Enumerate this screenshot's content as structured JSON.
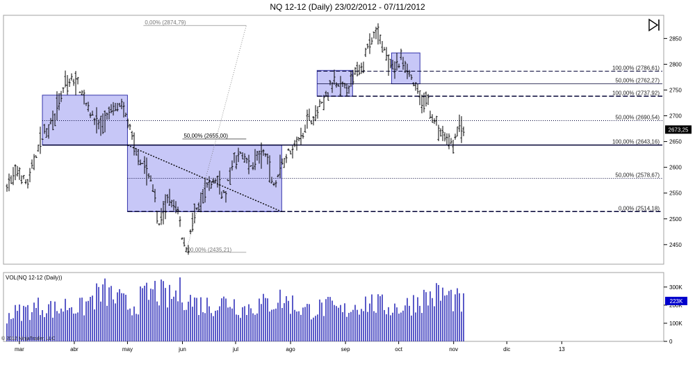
{
  "title": "NQ 12-12 (Daily)  23/02/2012 - 07/11/2012",
  "copyright": "© 2012 NinjaTrader, LLC",
  "chart_data": [
    {
      "type": "candlestick",
      "title": "NQ 12-12 (Daily)  23/02/2012 - 07/11/2012",
      "price_axis": {
        "ylim": [
          2412,
          2895
        ],
        "ticks": [
          2450,
          2500,
          2550,
          2600,
          2650,
          2700,
          2750,
          2800,
          2850
        ]
      },
      "x_tick_labels": [
        "mar",
        "abr",
        "may",
        "jun",
        "jul",
        "ago",
        "sep",
        "oct",
        "nov",
        "dic",
        "13"
      ],
      "x_tick_dates": [
        "2012-03-01",
        "2012-04-01",
        "2012-05-01",
        "2012-06-01",
        "2012-07-01",
        "2012-08-01",
        "2012-09-01",
        "2012-10-01",
        "2012-11-01",
        "2012-12-01",
        "2013-01-01"
      ],
      "last_price": "2673,25",
      "price_path": [
        [
          "2012-02-23",
          2565
        ],
        [
          "2012-02-29",
          2590
        ],
        [
          "2012-03-06",
          2565
        ],
        [
          "2012-03-09",
          2610
        ],
        [
          "2012-03-14",
          2660
        ],
        [
          "2012-03-19",
          2690
        ],
        [
          "2012-03-23",
          2720
        ],
        [
          "2012-03-27",
          2760
        ],
        [
          "2012-04-02",
          2770
        ],
        [
          "2012-04-05",
          2745
        ],
        [
          "2012-04-11",
          2700
        ],
        [
          "2012-04-16",
          2680
        ],
        [
          "2012-04-20",
          2700
        ],
        [
          "2012-04-25",
          2720
        ],
        [
          "2012-04-30",
          2705
        ],
        [
          "2012-05-04",
          2650
        ],
        [
          "2012-05-08",
          2615
        ],
        [
          "2012-05-11",
          2600
        ],
        [
          "2012-05-16",
          2560
        ],
        [
          "2012-05-18",
          2480
        ],
        [
          "2012-05-22",
          2520
        ],
        [
          "2012-05-25",
          2540
        ],
        [
          "2012-05-30",
          2510
        ],
        [
          "2012-06-01",
          2455
        ],
        [
          "2012-06-04",
          2440
        ],
        [
          "2012-06-06",
          2490
        ],
        [
          "2012-06-11",
          2530
        ],
        [
          "2012-06-15",
          2560
        ],
        [
          "2012-06-20",
          2580
        ],
        [
          "2012-06-25",
          2545
        ],
        [
          "2012-06-29",
          2600
        ],
        [
          "2012-07-03",
          2630
        ],
        [
          "2012-07-09",
          2600
        ],
        [
          "2012-07-13",
          2620
        ],
        [
          "2012-07-18",
          2625
        ],
        [
          "2012-07-23",
          2560
        ],
        [
          "2012-07-26",
          2600
        ],
        [
          "2012-07-31",
          2630
        ],
        [
          "2012-08-06",
          2655
        ],
        [
          "2012-08-10",
          2690
        ],
        [
          "2012-08-15",
          2700
        ],
        [
          "2012-08-20",
          2730
        ],
        [
          "2012-08-24",
          2760
        ],
        [
          "2012-08-29",
          2755
        ],
        [
          "2012-09-04",
          2760
        ],
        [
          "2012-09-07",
          2790
        ],
        [
          "2012-09-12",
          2810
        ],
        [
          "2012-09-14",
          2840
        ],
        [
          "2012-09-19",
          2860
        ],
        [
          "2012-09-21",
          2850
        ],
        [
          "2012-09-25",
          2800
        ],
        [
          "2012-09-28",
          2790
        ],
        [
          "2012-10-03",
          2810
        ],
        [
          "2012-10-05",
          2800
        ],
        [
          "2012-10-10",
          2760
        ],
        [
          "2012-10-15",
          2720
        ],
        [
          "2012-10-18",
          2740
        ],
        [
          "2012-10-19",
          2700
        ],
        [
          "2012-10-23",
          2680
        ],
        [
          "2012-10-26",
          2660
        ],
        [
          "2012-10-31",
          2645
        ],
        [
          "2012-11-02",
          2660
        ],
        [
          "2012-11-05",
          2680
        ],
        [
          "2012-11-07",
          2673
        ]
      ],
      "rectangles": [
        {
          "from": "2012-03-14",
          "to": "2012-05-01",
          "top": 2740,
          "bottom": 2643
        },
        {
          "from": "2012-05-01",
          "to": "2012-07-27",
          "top": 2643,
          "bottom": 2514
        },
        {
          "from": "2012-08-16",
          "to": "2012-09-05",
          "top": 2788,
          "bottom": 2738
        },
        {
          "from": "2012-09-27",
          "to": "2012-10-13",
          "top": 2822,
          "bottom": 2762
        }
      ],
      "fibonacci_levels": [
        {
          "label": "100,00% (2786,61)",
          "price": 2786.61,
          "style": "dashed"
        },
        {
          "label": "50,00% (2762,27)",
          "price": 2762.27,
          "style": "solid"
        },
        {
          "label": "100,00% (2737,92)",
          "price": 2737.92,
          "style": "dashed-bold"
        },
        {
          "label": "50,00% (2690,54)",
          "price": 2690.54,
          "style": "dotted"
        },
        {
          "label": "100,00% (2643,16)",
          "price": 2643.16,
          "style": "solid-bold"
        },
        {
          "label": "50,00% (2578,67)",
          "price": 2578.67,
          "style": "dotted"
        },
        {
          "label": "0,00% (2514,18)",
          "price": 2514.18,
          "style": "dashed-bold"
        }
      ],
      "fib_annotations": [
        {
          "label": "0,00% (2874,79)"
        },
        {
          "label": "00,00% (2435,21)"
        },
        {
          "label": "50,00% (2655,00)"
        }
      ]
    },
    {
      "type": "bar",
      "title": "VOL(NQ 12-12 (Daily))",
      "ylim": [
        0,
        380000
      ],
      "y_tick_labels": [
        "0",
        "100K",
        "200K",
        "300K"
      ],
      "y_ticks": [
        0,
        100000,
        200000,
        300000
      ],
      "last_value": "223K",
      "volume_profile": [
        [
          "2012-02-23",
          160000
        ],
        [
          "2012-03-01",
          180000
        ],
        [
          "2012-03-08",
          200000
        ],
        [
          "2012-03-15",
          220000
        ],
        [
          "2012-03-22",
          190000
        ],
        [
          "2012-03-29",
          230000
        ],
        [
          "2012-04-05",
          200000
        ],
        [
          "2012-04-12",
          270000
        ],
        [
          "2012-04-19",
          300000
        ],
        [
          "2012-04-26",
          250000
        ],
        [
          "2012-05-03",
          210000
        ],
        [
          "2012-05-10",
          270000
        ],
        [
          "2012-05-17",
          310000
        ],
        [
          "2012-05-24",
          260000
        ],
        [
          "2012-05-31",
          300000
        ],
        [
          "2012-06-07",
          240000
        ],
        [
          "2012-06-14",
          220000
        ],
        [
          "2012-06-21",
          230000
        ],
        [
          "2012-06-28",
          250000
        ],
        [
          "2012-07-05",
          200000
        ],
        [
          "2012-07-12",
          220000
        ],
        [
          "2012-07-19",
          230000
        ],
        [
          "2012-07-26",
          260000
        ],
        [
          "2012-08-02",
          230000
        ],
        [
          "2012-08-09",
          190000
        ],
        [
          "2012-08-16",
          200000
        ],
        [
          "2012-08-23",
          210000
        ],
        [
          "2012-08-30",
          180000
        ],
        [
          "2012-09-06",
          220000
        ],
        [
          "2012-09-13",
          240000
        ],
        [
          "2012-09-20",
          220000
        ],
        [
          "2012-09-27",
          210000
        ],
        [
          "2012-10-04",
          210000
        ],
        [
          "2012-10-11",
          250000
        ],
        [
          "2012-10-18",
          270000
        ],
        [
          "2012-10-25",
          290000
        ],
        [
          "2012-11-01",
          260000
        ],
        [
          "2012-11-07",
          223000
        ]
      ]
    }
  ]
}
